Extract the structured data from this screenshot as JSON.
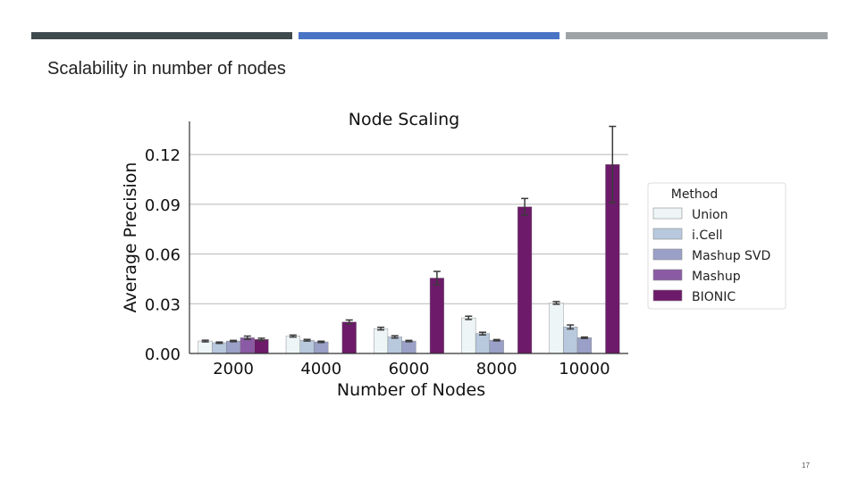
{
  "slide": {
    "title": "Scalability in number of nodes",
    "page_number": "17",
    "top_bar_colors": [
      "#3f4a4f",
      "#4a74c4",
      "#9ea3a6"
    ]
  },
  "chart_data": {
    "type": "bar",
    "title": "Node Scaling",
    "xlabel": "Number of Nodes",
    "ylabel": "Average Precision",
    "categories": [
      "2000",
      "4000",
      "6000",
      "8000",
      "10000"
    ],
    "ylim": [
      0,
      0.14
    ],
    "yticks": [
      "0.00",
      "0.03",
      "0.06",
      "0.09",
      "0.12"
    ],
    "ytick_values": [
      0,
      0.03,
      0.06,
      0.09,
      0.12
    ],
    "grid": true,
    "error_bars": true,
    "legend": {
      "title": "Method",
      "placement": "right"
    },
    "series": [
      {
        "name": "Union",
        "color": "#eef5f7",
        "values": [
          0.0075,
          0.0105,
          0.015,
          0.0215,
          0.0305
        ],
        "errors": [
          0.0005,
          0.0006,
          0.0008,
          0.001,
          0.0008
        ]
      },
      {
        "name": "i.Cell",
        "color": "#b8c9dd",
        "values": [
          0.0065,
          0.008,
          0.01,
          0.012,
          0.016
        ],
        "errors": [
          0.0004,
          0.0005,
          0.0007,
          0.0008,
          0.0012
        ]
      },
      {
        "name": "Mashup SVD",
        "color": "#9aa0c7",
        "values": [
          0.0075,
          0.007,
          0.0075,
          0.008,
          0.0095
        ],
        "errors": [
          0.0004,
          0.0004,
          0.0004,
          0.0004,
          0.0004
        ]
      },
      {
        "name": "Mashup",
        "color": "#8a5ba4",
        "values": [
          0.0095,
          null,
          null,
          null,
          null
        ],
        "errors": [
          0.001,
          null,
          null,
          null,
          null
        ]
      },
      {
        "name": "BIONIC",
        "color": "#6d1a6a",
        "values": [
          0.0085,
          0.019,
          0.0455,
          0.0885,
          0.114
        ],
        "errors": [
          0.0007,
          0.0012,
          0.004,
          0.005,
          0.023
        ]
      }
    ]
  }
}
